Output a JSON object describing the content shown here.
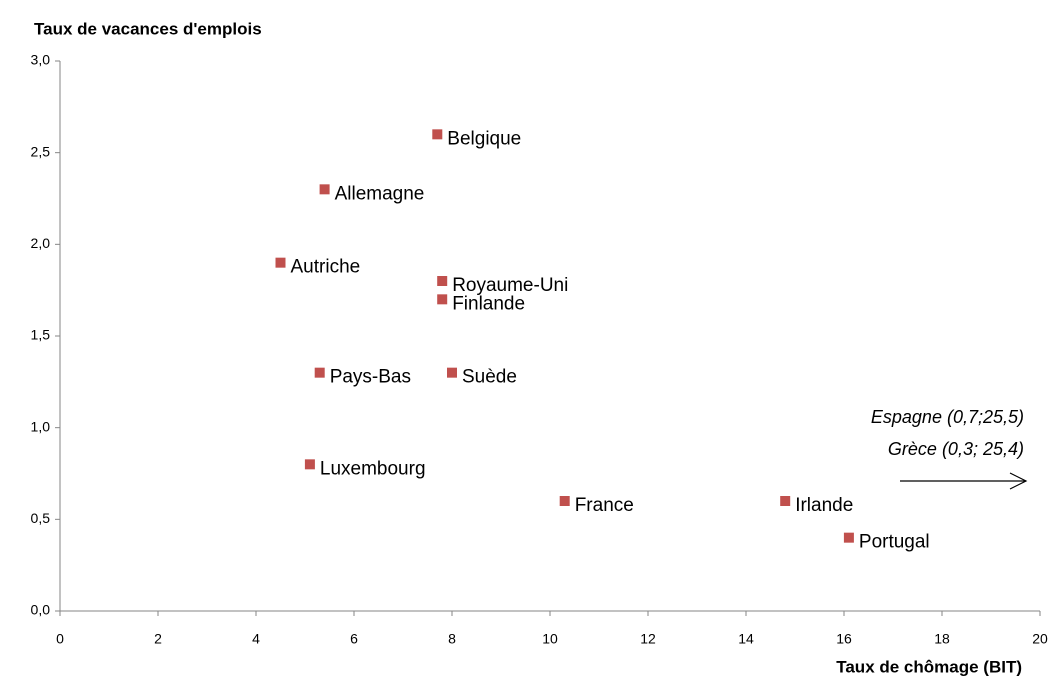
{
  "chart_data": {
    "type": "scatter",
    "title": "Taux de vacances d'emplois",
    "x_label": "Taux de chômage (BIT)",
    "labels": [
      "Belgique",
      "Allemagne",
      "Autriche",
      "Royaume-Uni",
      "Finlande",
      "Pays-Bas",
      "Suède",
      "Luxembourg",
      "France",
      "Irlande",
      "Portugal"
    ],
    "x": [
      7.7,
      5.4,
      4.5,
      7.8,
      7.8,
      5.3,
      8.0,
      5.1,
      10.3,
      14.8,
      16.1
    ],
    "values": [
      2.6,
      2.3,
      1.9,
      1.8,
      1.7,
      1.3,
      1.3,
      0.8,
      0.6,
      0.6,
      0.4
    ],
    "color": "#c0504d",
    "xlim": [
      0,
      20
    ],
    "xticks": [
      0,
      2,
      4,
      6,
      8,
      10,
      12,
      14,
      16,
      18,
      20
    ],
    "ylim": [
      0,
      3
    ],
    "yticks": [
      {
        "value": 0,
        "label": "0,0"
      },
      {
        "value": 0.5,
        "label": "0,5"
      },
      {
        "value": 1,
        "label": "1,0"
      },
      {
        "value": 1.5,
        "label": "1,5"
      },
      {
        "value": 2,
        "label": "2,0"
      },
      {
        "value": 2.5,
        "label": "2,5"
      },
      {
        "value": 3,
        "label": "3,0"
      }
    ],
    "annotations": [
      "Espagne (0,7;25,5)",
      "Grèce (0,3; 25,4)"
    ]
  }
}
